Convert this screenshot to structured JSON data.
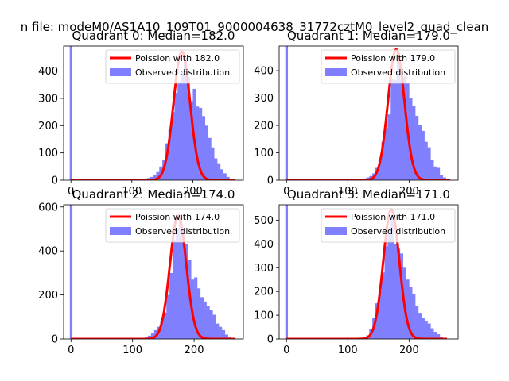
{
  "figure": {
    "suptitle": "n file: modeM0/AS1A10_109T01_9000004638_31772cztM0_level2_quad_clean"
  },
  "colors": {
    "hist": "#8080ff",
    "poisson": "#ff0000",
    "axes": "#000000"
  },
  "chart_data": [
    {
      "type": "bar",
      "title": "Quadrant 0: Median=182.0",
      "median": 182.0,
      "xlim": [
        -12,
        283
      ],
      "ylim": [
        0,
        492
      ],
      "xticks": [
        0,
        100,
        200
      ],
      "yticks": [
        0,
        100,
        200,
        300,
        400
      ],
      "legend": {
        "placement": "top-right",
        "line_label": "Poission with 182.0",
        "hist_label": "Observed distribution"
      },
      "bin_width": 5,
      "bins_x": [
        0,
        115,
        120,
        125,
        130,
        135,
        140,
        145,
        150,
        155,
        160,
        165,
        170,
        175,
        180,
        185,
        190,
        195,
        200,
        205,
        210,
        215,
        220,
        225,
        230,
        235,
        240,
        245,
        250,
        255,
        260,
        265,
        270
      ],
      "bins_y": [
        492,
        0,
        3,
        8,
        12,
        20,
        30,
        50,
        75,
        135,
        185,
        250,
        320,
        360,
        395,
        450,
        380,
        290,
        335,
        270,
        265,
        235,
        200,
        155,
        120,
        80,
        62,
        40,
        25,
        12,
        5,
        3,
        0
      ],
      "poisson": {
        "lambda": 182.0,
        "peak": 472,
        "x_start": 0,
        "x_end": 270
      }
    },
    {
      "type": "bar",
      "title": "Quadrant 1: Median=179.0",
      "median": 179.0,
      "xlim": [
        -12,
        280
      ],
      "ylim": [
        0,
        490
      ],
      "xticks": [
        0,
        100,
        200
      ],
      "yticks": [
        0,
        100,
        200,
        300,
        400
      ],
      "legend": {
        "placement": "top-right",
        "line_label": "Poission with 179.0",
        "hist_label": "Observed distribution"
      },
      "bin_width": 5,
      "bins_x": [
        0,
        115,
        120,
        125,
        130,
        135,
        140,
        145,
        150,
        155,
        160,
        165,
        170,
        175,
        180,
        185,
        190,
        195,
        200,
        205,
        210,
        215,
        220,
        225,
        230,
        235,
        240,
        245,
        250,
        255,
        260,
        265
      ],
      "bins_y": [
        490,
        0,
        3,
        6,
        10,
        15,
        25,
        45,
        75,
        140,
        190,
        240,
        370,
        365,
        470,
        365,
        380,
        355,
        300,
        270,
        235,
        200,
        180,
        140,
        120,
        75,
        50,
        45,
        20,
        10,
        5,
        0
      ],
      "poisson": {
        "lambda": 179.0,
        "peak": 478,
        "x_start": 0,
        "x_end": 267
      }
    },
    {
      "type": "bar",
      "title": "Quadrant 2: Median=174.0",
      "median": 174.0,
      "xlim": [
        -12,
        280
      ],
      "ylim": [
        0,
        610
      ],
      "xticks": [
        0,
        100,
        200
      ],
      "yticks": [
        0,
        200,
        400,
        600
      ],
      "legend": {
        "placement": "top-right",
        "line_label": "Poission with 174.0",
        "hist_label": "Observed distribution"
      },
      "bin_width": 5,
      "bins_x": [
        0,
        105,
        110,
        115,
        120,
        125,
        130,
        135,
        140,
        145,
        150,
        155,
        160,
        165,
        170,
        175,
        180,
        185,
        190,
        195,
        200,
        205,
        210,
        215,
        220,
        225,
        230,
        235,
        240,
        245,
        250,
        255,
        260,
        265
      ],
      "bins_y": [
        610,
        0,
        2,
        5,
        10,
        15,
        25,
        40,
        55,
        80,
        120,
        200,
        300,
        450,
        500,
        560,
        440,
        430,
        360,
        270,
        280,
        230,
        190,
        170,
        150,
        130,
        110,
        70,
        55,
        40,
        20,
        10,
        5,
        0
      ],
      "poisson": {
        "lambda": 174.0,
        "peak": 562,
        "x_start": 0,
        "x_end": 267
      }
    },
    {
      "type": "bar",
      "title": "Quadrant 3: Median=171.0",
      "median": 171.0,
      "xlim": [
        -12,
        280
      ],
      "ylim": [
        0,
        565
      ],
      "xticks": [
        0,
        100,
        200
      ],
      "yticks": [
        0,
        100,
        200,
        300,
        400,
        500
      ],
      "legend": {
        "placement": "top-right",
        "line_label": "Poission with 171.0",
        "hist_label": "Observed distribution"
      },
      "bin_width": 5,
      "bins_x": [
        0,
        120,
        125,
        130,
        135,
        140,
        145,
        150,
        155,
        160,
        165,
        170,
        175,
        180,
        185,
        190,
        195,
        200,
        205,
        210,
        215,
        220,
        225,
        230,
        235,
        240,
        245,
        250,
        255,
        260
      ],
      "bins_y": [
        565,
        0,
        5,
        15,
        40,
        90,
        150,
        200,
        280,
        390,
        460,
        520,
        400,
        380,
        360,
        300,
        250,
        220,
        190,
        140,
        110,
        90,
        75,
        65,
        45,
        30,
        20,
        10,
        5,
        0
      ],
      "poisson": {
        "lambda": 171.0,
        "peak": 545,
        "x_start": 0,
        "x_end": 262
      }
    }
  ]
}
